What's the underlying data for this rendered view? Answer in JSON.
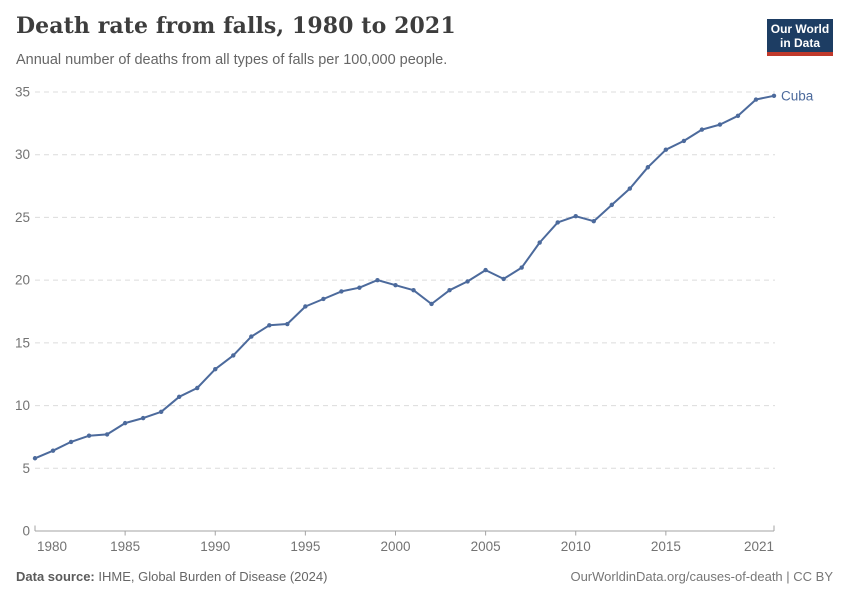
{
  "header": {
    "title": "Death rate from falls, 1980 to 2021",
    "subtitle": "Annual number of deaths from all types of falls per 100,000 people."
  },
  "logo": {
    "line1": "Our World",
    "line2": "in Data",
    "bg_color": "#1d3d63",
    "accent_color": "#c0392b"
  },
  "chart_data": {
    "type": "line",
    "title": "Death rate from falls, 1980 to 2021",
    "xlabel": "",
    "ylabel": "",
    "x": [
      1980,
      1981,
      1982,
      1983,
      1984,
      1985,
      1986,
      1987,
      1988,
      1989,
      1990,
      1991,
      1992,
      1993,
      1994,
      1995,
      1996,
      1997,
      1998,
      1999,
      2000,
      2001,
      2002,
      2003,
      2004,
      2005,
      2006,
      2007,
      2008,
      2009,
      2010,
      2011,
      2012,
      2013,
      2014,
      2015,
      2016,
      2017,
      2018,
      2019,
      2020,
      2021
    ],
    "series": [
      {
        "name": "Cuba",
        "color": "#4c6a9c",
        "values": [
          5.8,
          6.4,
          7.1,
          7.6,
          7.7,
          8.6,
          9.0,
          9.5,
          10.7,
          11.4,
          12.9,
          14.0,
          15.5,
          16.4,
          16.5,
          17.9,
          18.5,
          19.1,
          19.4,
          20.0,
          19.6,
          19.2,
          18.1,
          19.2,
          19.9,
          20.8,
          20.1,
          21.0,
          23.0,
          24.6,
          25.1,
          24.7,
          26.0,
          27.3,
          29.0,
          30.4,
          31.1,
          32.0,
          32.4,
          33.1,
          34.4,
          34.7
        ]
      }
    ],
    "xlim": [
      1980,
      2021
    ],
    "ylim": [
      0,
      35
    ],
    "xticks": [
      1980,
      1985,
      1990,
      1995,
      2000,
      2005,
      2010,
      2015,
      2021
    ],
    "yticks": [
      0,
      5,
      10,
      15,
      20,
      25,
      30,
      35
    ],
    "grid": "horizontal dashed",
    "legend": "entity label at end of line",
    "colors": {
      "gridline": "#dcdcdc",
      "axis": "#a3a3a3",
      "tick_label": "#737373"
    }
  },
  "footer": {
    "source_label": "Data source:",
    "source_value": "IHME, Global Burden of Disease (2024)",
    "credit": "OurWorldinData.org/causes-of-death | CC BY"
  }
}
